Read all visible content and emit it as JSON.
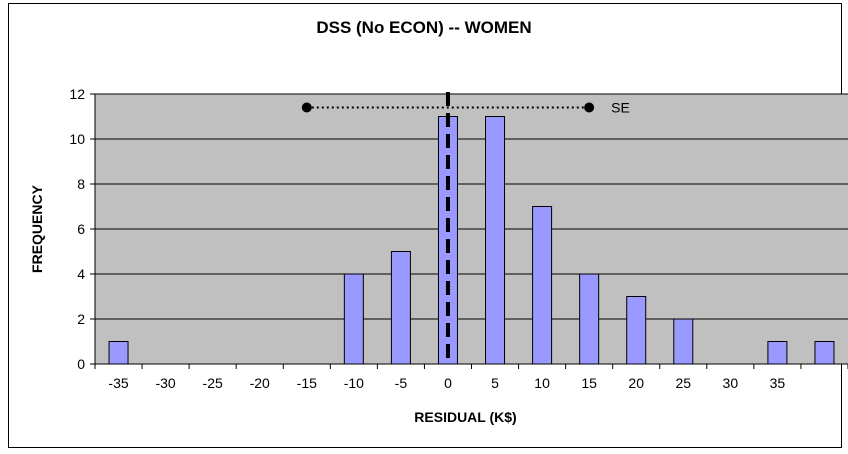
{
  "chart_data": {
    "type": "bar",
    "title": "DSS (No ECON) -- WOMEN",
    "xlabel": "RESIDUAL (K$)",
    "ylabel": "FREQUENCY",
    "x_tick_labels": [
      "-35",
      "-30",
      "-25",
      "-20",
      "-15",
      "-10",
      "-5",
      "0",
      "5",
      "10",
      "15",
      "20",
      "25",
      "30",
      "35"
    ],
    "y_ticks": [
      0,
      2,
      4,
      6,
      8,
      10,
      12
    ],
    "ylim": [
      0,
      12
    ],
    "xlim": [
      -37.5,
      42.5
    ],
    "bars": [
      {
        "x": -35,
        "value": 1
      },
      {
        "x": -10,
        "value": 4
      },
      {
        "x": -5,
        "value": 5
      },
      {
        "x": 0,
        "value": 11
      },
      {
        "x": 5,
        "value": 11
      },
      {
        "x": 10,
        "value": 7
      },
      {
        "x": 15,
        "value": 4
      },
      {
        "x": 20,
        "value": 3
      },
      {
        "x": 25,
        "value": 2
      },
      {
        "x": 35,
        "value": 1
      },
      {
        "x": 40,
        "value": 1
      }
    ],
    "bar_color": "#9999ff",
    "plot_background": "#c0c0c0",
    "grid": true,
    "mean_line": {
      "x": 0,
      "style": "dashed",
      "color": "#000000"
    },
    "se_interval": {
      "x_start": -15,
      "x_end": 15,
      "y": 11.4,
      "label": "SE"
    }
  }
}
